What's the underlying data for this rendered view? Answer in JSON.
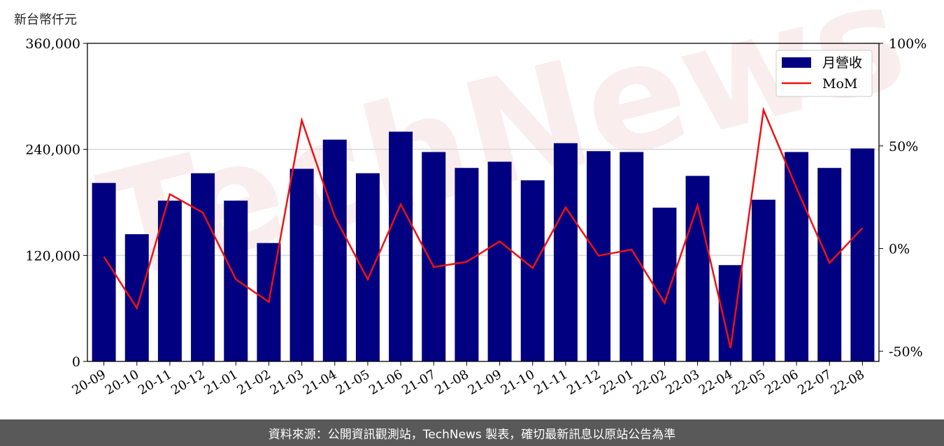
{
  "unit_label": "新台幣仟元",
  "footer_note": "資料來源：公開資訊觀測站，TechNews 製表，確切最新訊息以原站公告為準",
  "watermark_text": "TechNews",
  "colors": {
    "bars": "#000080",
    "line": "#ee1111",
    "grid": "#d9d9d9",
    "footer_bg": "#595959"
  },
  "chart_data": {
    "type": "bar+line",
    "categories": [
      "20-09",
      "20-10",
      "20-11",
      "20-12",
      "21-01",
      "21-02",
      "21-03",
      "21-04",
      "21-05",
      "21-06",
      "21-07",
      "21-08",
      "21-09",
      "21-10",
      "21-11",
      "21-12",
      "22-01",
      "22-02",
      "22-03",
      "22-04",
      "22-05",
      "22-06",
      "22-07",
      "22-08"
    ],
    "series": [
      {
        "name": "月營收",
        "type": "bar",
        "axis": "left",
        "values": [
          202000,
          144000,
          182000,
          213000,
          182000,
          134000,
          218000,
          251000,
          213000,
          260000,
          237000,
          219000,
          226000,
          205000,
          247000,
          238000,
          237000,
          174000,
          210000,
          109000,
          183000,
          237000,
          219000,
          241000
        ]
      },
      {
        "name": "MoM",
        "type": "line",
        "axis": "right",
        "values": [
          -4,
          -29,
          26.5,
          17.5,
          -15,
          -26,
          62.5,
          15.5,
          -15,
          21.5,
          -9,
          -6.5,
          3.5,
          -9.5,
          20,
          -3.5,
          -0.5,
          -26.5,
          21,
          -48.5,
          67.5,
          29.5,
          -7,
          10
        ]
      }
    ],
    "yleft": {
      "min": 0,
      "max": 360000,
      "ticks": [
        0,
        120000,
        240000,
        360000
      ],
      "tick_labels": [
        "0",
        "120,000",
        "240,000",
        "360,000"
      ]
    },
    "yright": {
      "min": -55,
      "max": 100,
      "ticks": [
        -50,
        0,
        50,
        100
      ],
      "tick_labels": [
        "-50%",
        "0%",
        "50%",
        "100%"
      ]
    },
    "legend": {
      "position": "top-right",
      "entries": [
        "月營收",
        "MoM"
      ]
    },
    "grid": "horizontal"
  }
}
